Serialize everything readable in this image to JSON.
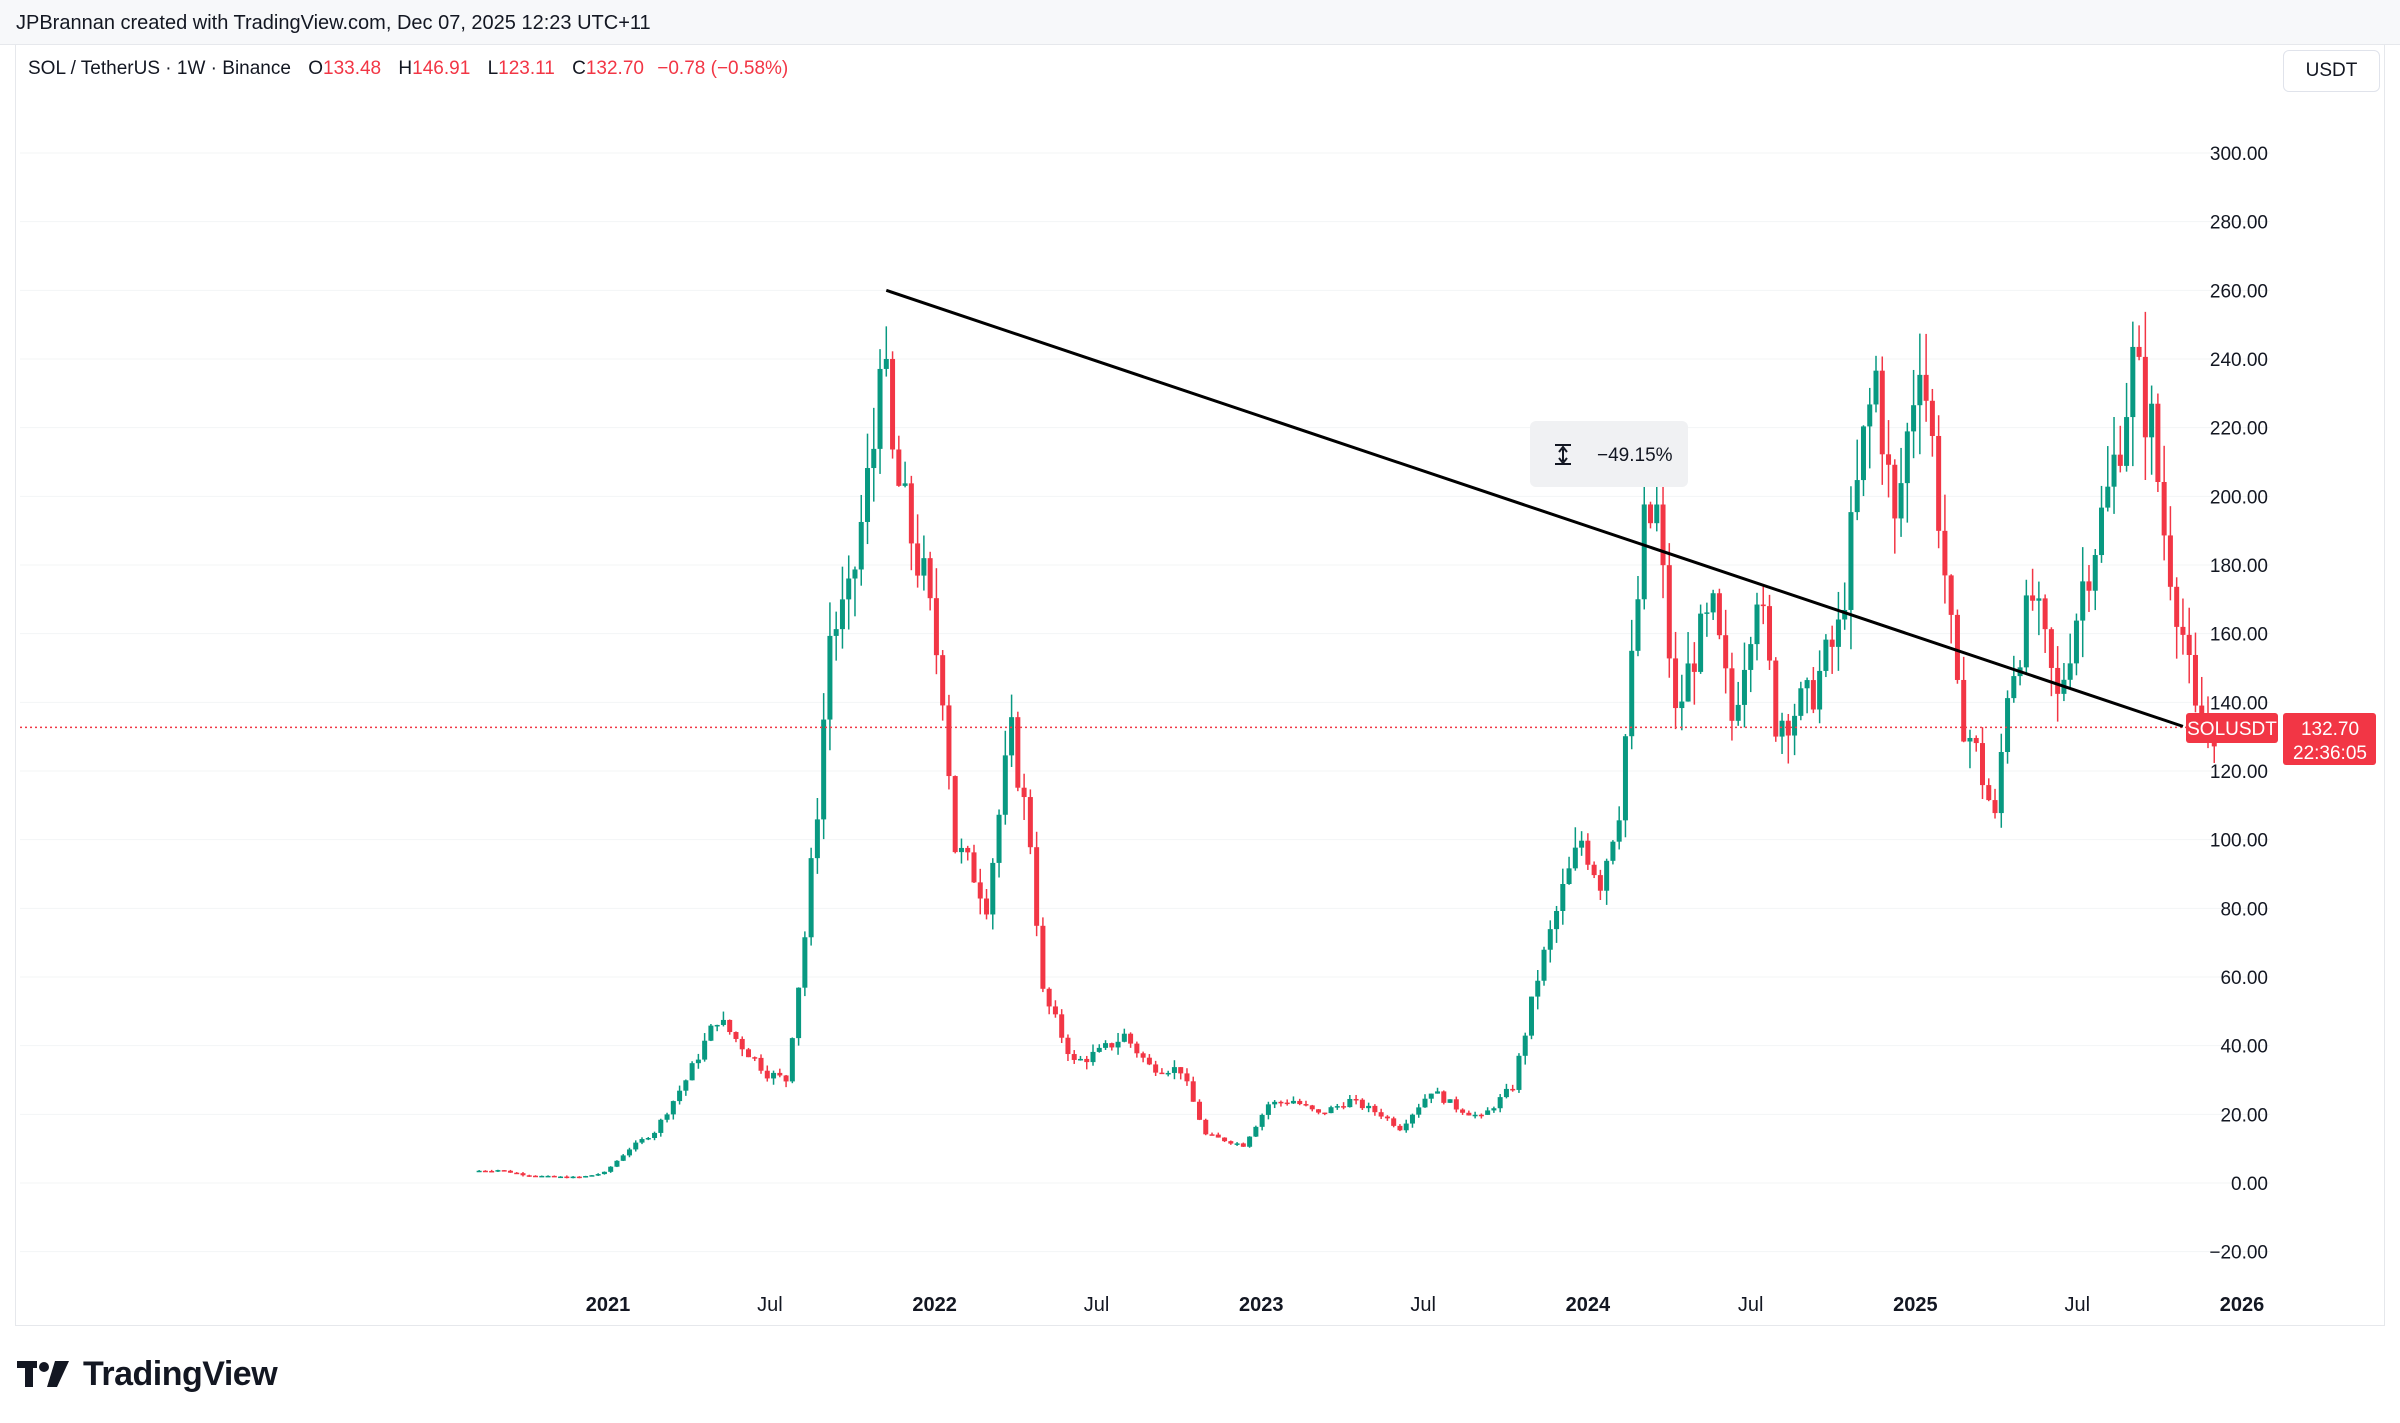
{
  "header": {
    "created_text": "JPBrannan created with TradingView.com, Dec 07, 2025 12:23 UTC+11"
  },
  "legend": {
    "symbol": "SOL / TetherUS · 1W · Binance",
    "open_label": "O",
    "open": "133.48",
    "high_label": "H",
    "high": "146.91",
    "low_label": "L",
    "low": "123.11",
    "close_label": "C",
    "close": "132.70",
    "change": "−0.78 (−0.58%)"
  },
  "currency": "USDT",
  "price_tag": {
    "symbol": "SOLUSDT",
    "price": "132.70",
    "countdown": "22:36:05"
  },
  "measure_label": "−49.15%",
  "footer": {
    "brand": "TradingView"
  },
  "colors": {
    "up": "#089981",
    "down": "#f23645",
    "trendline": "#000000",
    "price_line": "#f23645",
    "text": "#131722"
  },
  "chart_data": {
    "type": "candlestick",
    "interval": "1W",
    "y_axis": {
      "range": [
        -25,
        310
      ],
      "ticks": [
        "300.00",
        "280.00",
        "260.00",
        "240.00",
        "220.00",
        "200.00",
        "180.00",
        "160.00",
        "140.00",
        "120.00",
        "100.00",
        "80.00",
        "60.00",
        "40.00",
        "20.00",
        "0.00",
        "−20.00"
      ],
      "tick_values": [
        300,
        280,
        260,
        240,
        220,
        200,
        180,
        160,
        140,
        120,
        100,
        80,
        60,
        40,
        20,
        0,
        -20
      ]
    },
    "x_axis": {
      "ticks": [
        {
          "label": "2021",
          "date": "2021-01-01",
          "bold": true
        },
        {
          "label": "Jul",
          "date": "2021-07-01",
          "bold": false
        },
        {
          "label": "2022",
          "date": "2022-01-01",
          "bold": true
        },
        {
          "label": "Jul",
          "date": "2022-07-01",
          "bold": false
        },
        {
          "label": "2023",
          "date": "2023-01-01",
          "bold": true
        },
        {
          "label": "Jul",
          "date": "2023-07-01",
          "bold": false
        },
        {
          "label": "2024",
          "date": "2024-01-01",
          "bold": true
        },
        {
          "label": "Jul",
          "date": "2024-07-01",
          "bold": false
        },
        {
          "label": "2025",
          "date": "2025-01-01",
          "bold": true
        },
        {
          "label": "Jul",
          "date": "2025-07-01",
          "bold": false
        },
        {
          "label": "2026",
          "date": "2026-01-01",
          "bold": true
        }
      ]
    },
    "current_price": 132.7,
    "trendline": {
      "start": {
        "date": "2021-11-08",
        "value": 260
      },
      "end": {
        "date": "2025-10-27",
        "value": 133
      }
    },
    "price_path": [
      [
        "2020-08-10",
        3.5
      ],
      [
        "2020-09-07",
        3.8
      ],
      [
        "2020-10-05",
        2.5
      ],
      [
        "2020-11-02",
        1.8
      ],
      [
        "2020-12-07",
        1.6
      ],
      [
        "2021-01-04",
        3
      ],
      [
        "2021-02-01",
        10
      ],
      [
        "2021-03-01",
        15
      ],
      [
        "2021-04-05",
        30
      ],
      [
        "2021-05-10",
        48
      ],
      [
        "2021-06-07",
        40
      ],
      [
        "2021-07-05",
        32
      ],
      [
        "2021-07-26",
        30
      ],
      [
        "2021-08-16",
        72
      ],
      [
        "2021-08-30",
        110
      ],
      [
        "2021-09-13",
        160
      ],
      [
        "2021-10-04",
        168
      ],
      [
        "2021-11-01",
        215
      ],
      [
        "2021-11-08",
        248
      ],
      [
        "2021-11-22",
        210
      ],
      [
        "2021-12-06",
        195
      ],
      [
        "2021-12-27",
        175
      ],
      [
        "2022-01-17",
        145
      ],
      [
        "2022-01-31",
        98
      ],
      [
        "2022-02-21",
        90
      ],
      [
        "2022-03-07",
        82
      ],
      [
        "2022-03-28",
        120
      ],
      [
        "2022-04-04",
        130
      ],
      [
        "2022-04-25",
        100
      ],
      [
        "2022-05-09",
        55
      ],
      [
        "2022-06-13",
        35
      ],
      [
        "2022-07-11",
        38
      ],
      [
        "2022-08-08",
        43
      ],
      [
        "2022-09-05",
        34
      ],
      [
        "2022-10-10",
        33
      ],
      [
        "2022-11-07",
        14
      ],
      [
        "2022-12-19",
        11
      ],
      [
        "2023-01-16",
        23
      ],
      [
        "2023-02-13",
        24
      ],
      [
        "2023-03-13",
        20
      ],
      [
        "2023-04-17",
        24
      ],
      [
        "2023-05-22",
        20
      ],
      [
        "2023-06-12",
        16
      ],
      [
        "2023-07-17",
        27
      ],
      [
        "2023-08-14",
        22
      ],
      [
        "2023-09-11",
        19
      ],
      [
        "2023-10-16",
        28
      ],
      [
        "2023-11-13",
        60
      ],
      [
        "2023-12-11",
        85
      ],
      [
        "2024-01-01",
        100
      ],
      [
        "2024-01-22",
        88
      ],
      [
        "2024-02-12",
        110
      ],
      [
        "2024-03-11",
        190
      ],
      [
        "2024-03-25",
        195
      ],
      [
        "2024-04-15",
        135
      ],
      [
        "2024-05-06",
        155
      ],
      [
        "2024-05-27",
        165
      ],
      [
        "2024-06-17",
        135
      ],
      [
        "2024-07-15",
        175
      ],
      [
        "2024-08-05",
        135
      ],
      [
        "2024-09-09",
        140
      ],
      [
        "2024-10-14",
        160
      ],
      [
        "2024-11-11",
        215
      ],
      [
        "2024-11-25",
        235
      ],
      [
        "2024-12-16",
        190
      ],
      [
        "2025-01-13",
        245
      ],
      [
        "2025-01-27",
        215
      ],
      [
        "2025-02-24",
        140
      ],
      [
        "2025-03-17",
        125
      ],
      [
        "2025-04-07",
        105
      ],
      [
        "2025-04-21",
        145
      ],
      [
        "2025-05-19",
        170
      ],
      [
        "2025-06-16",
        140
      ],
      [
        "2025-07-14",
        175
      ],
      [
        "2025-08-11",
        200
      ],
      [
        "2025-09-08",
        238
      ],
      [
        "2025-09-29",
        220
      ],
      [
        "2025-10-13",
        190
      ],
      [
        "2025-11-03",
        160
      ],
      [
        "2025-11-17",
        135
      ],
      [
        "2025-12-01",
        132.7
      ]
    ]
  }
}
